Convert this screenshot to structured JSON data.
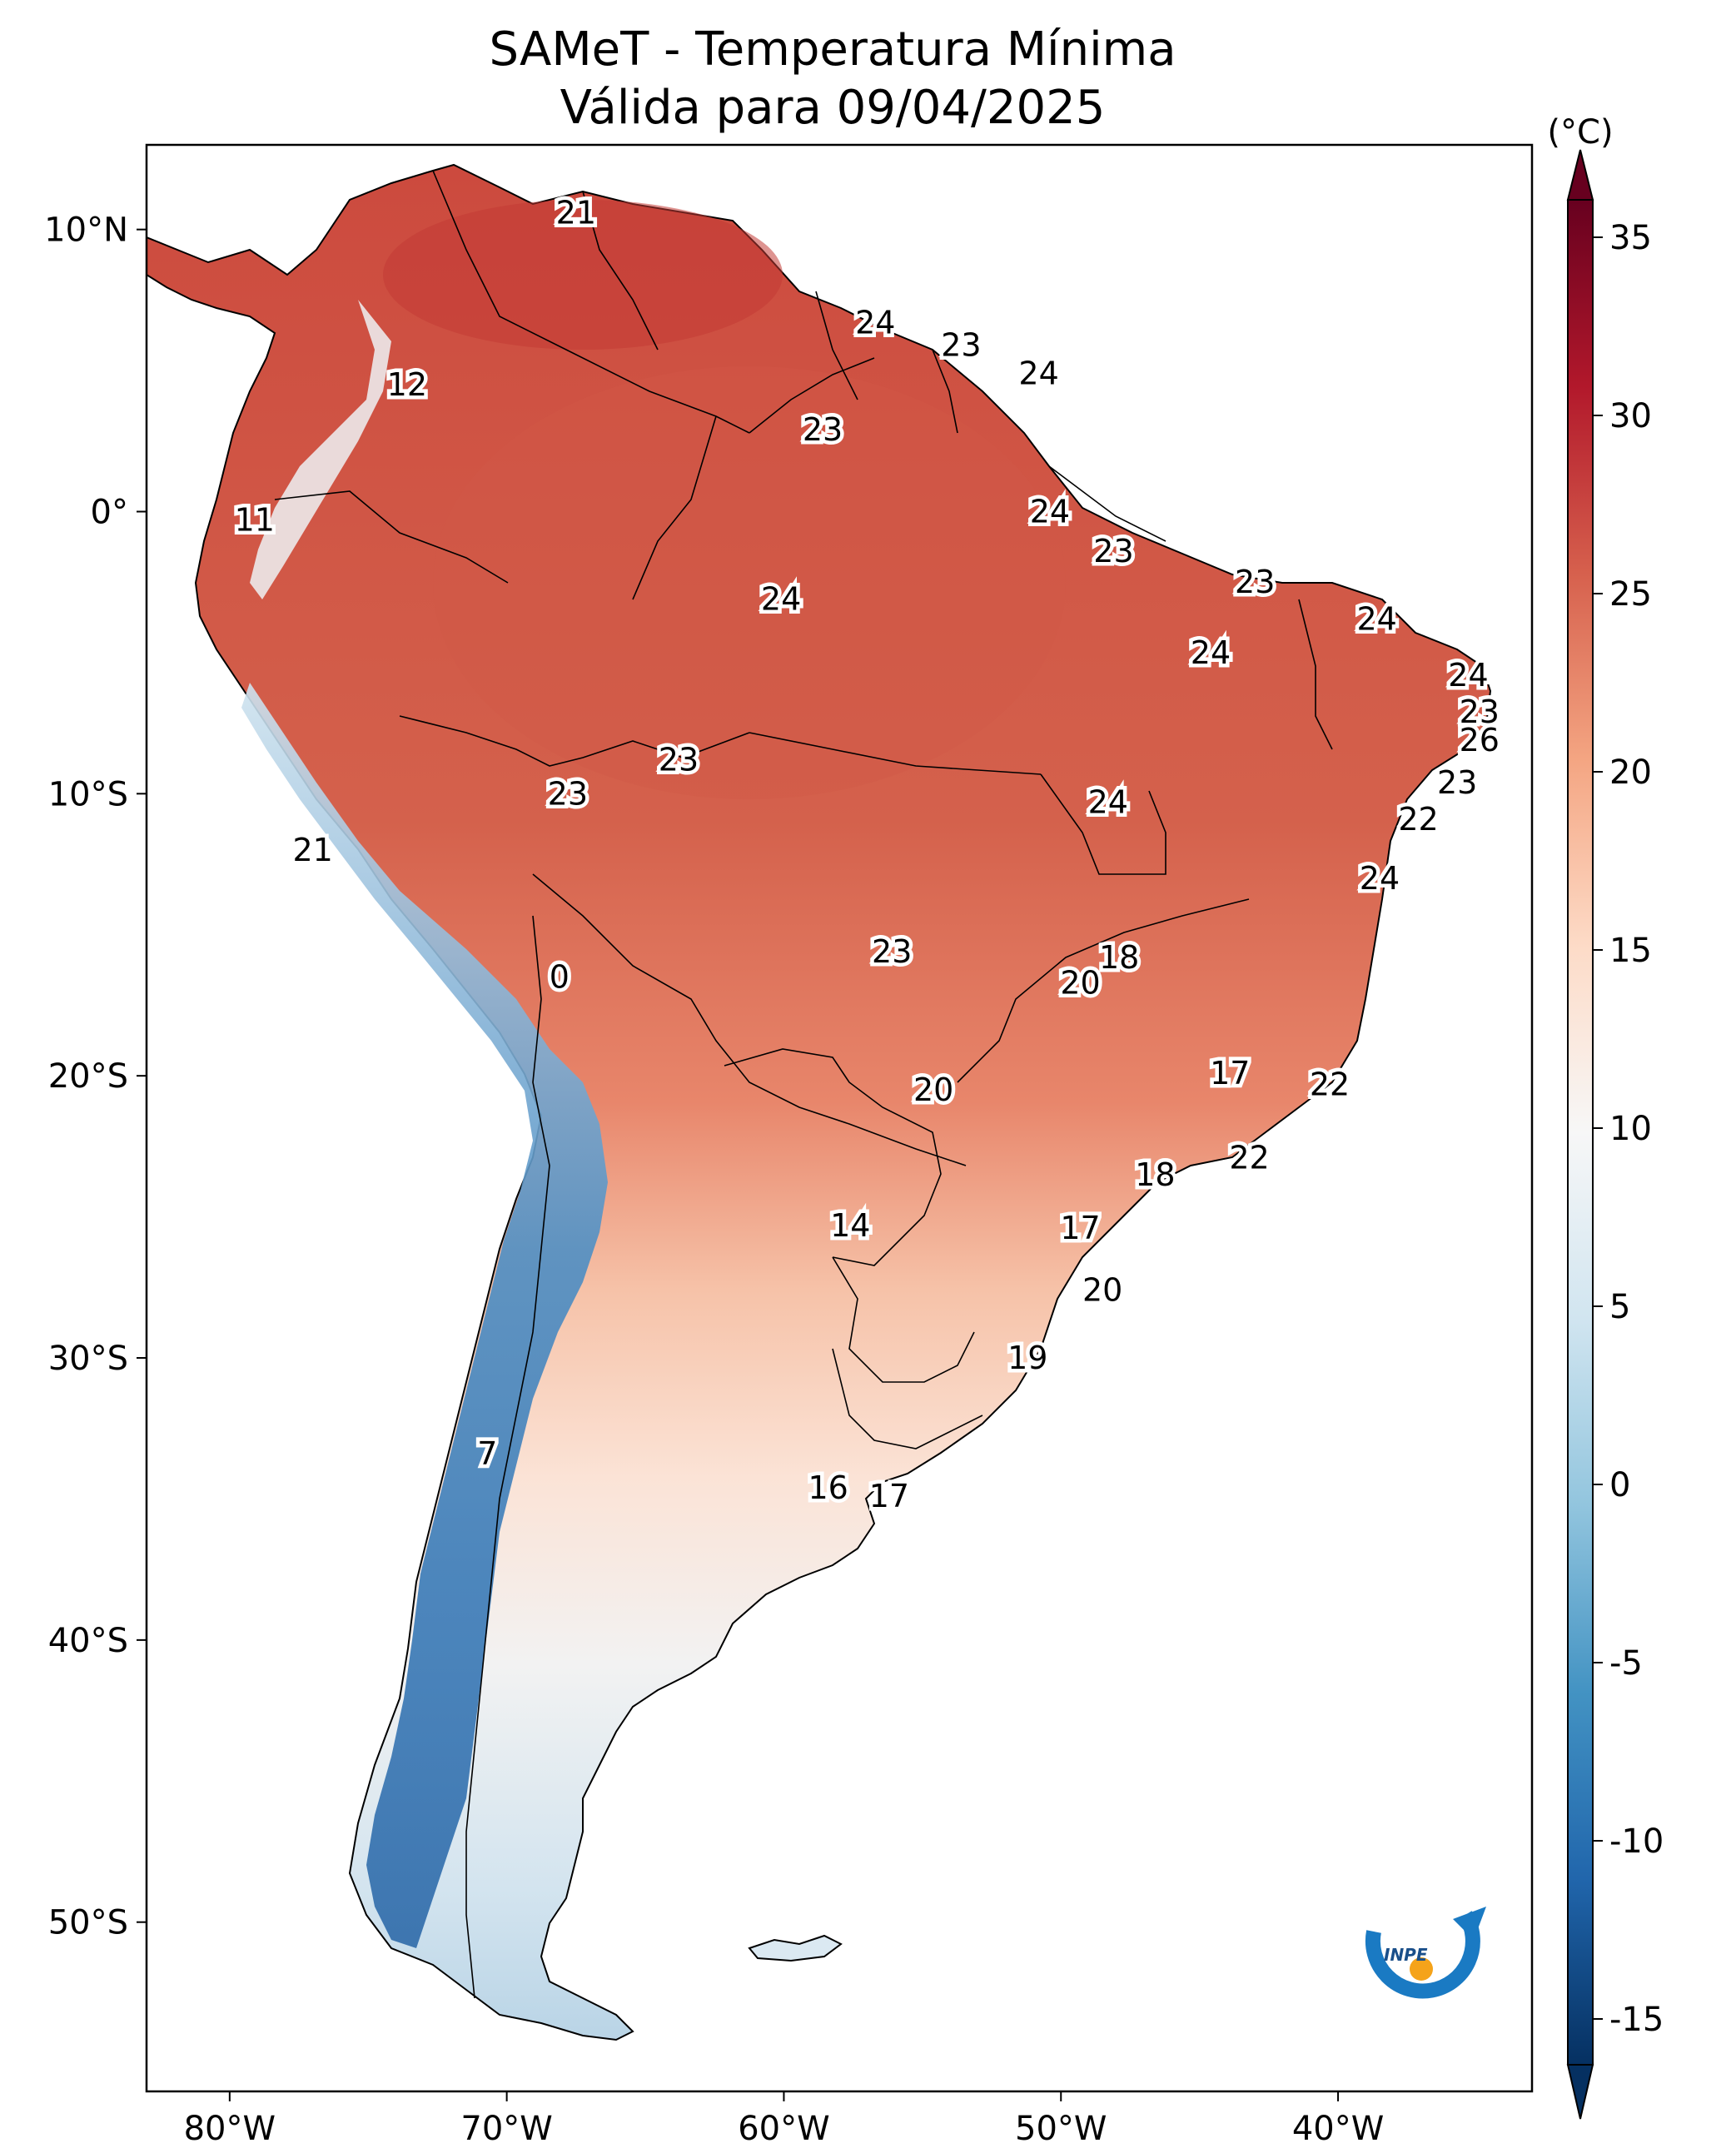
{
  "title": {
    "line1": "SAMeT - Temperatura Mínima",
    "line2": "Válida para 09/04/2025"
  },
  "colorbar": {
    "unit": "(°C)",
    "ticks": [
      "35",
      "30",
      "25",
      "20",
      "15",
      "10",
      "5",
      "0",
      "-5",
      "-10",
      "-15"
    ],
    "colors": {
      "max": "#67001f",
      "hot": "#c9393a",
      "warm": "#e8775f",
      "mild": "#f7c4a7",
      "neutral": "#f7f7f7",
      "cool": "#bcdbea",
      "cold": "#5a9fcc",
      "min": "#053061"
    }
  },
  "axes": {
    "lon_labels": [
      "80°W",
      "70°W",
      "60°W",
      "50°W",
      "40°W"
    ],
    "lat_labels": [
      "10°N",
      "0°",
      "10°S",
      "20°S",
      "30°S",
      "40°S",
      "50°S"
    ]
  },
  "logo": {
    "text": "INPE"
  },
  "chart_data": {
    "type": "map",
    "variable": "Temperatura Mínima (°C)",
    "valid_date": "09/04/2025",
    "lon_range": [
      -83,
      -33
    ],
    "lat_range": [
      -56,
      13
    ],
    "colorbar_range": [
      -15,
      35
    ],
    "station_values": [
      {
        "lon": -67.5,
        "lat": 10.6,
        "value": "21"
      },
      {
        "lon": -56.7,
        "lat": 6.7,
        "value": "24"
      },
      {
        "lon": -53.6,
        "lat": 5.9,
        "value": "23"
      },
      {
        "lon": -50.8,
        "lat": 4.9,
        "value": "24"
      },
      {
        "lon": -73.6,
        "lat": 4.5,
        "value": "12"
      },
      {
        "lon": -58.6,
        "lat": 2.9,
        "value": "23"
      },
      {
        "lon": -50.4,
        "lat": 0.0,
        "value": "24"
      },
      {
        "lon": -79.1,
        "lat": -0.3,
        "value": "11"
      },
      {
        "lon": -48.1,
        "lat": -1.4,
        "value": "23"
      },
      {
        "lon": -43.0,
        "lat": -2.5,
        "value": "23"
      },
      {
        "lon": -38.6,
        "lat": -3.8,
        "value": "24"
      },
      {
        "lon": -60.1,
        "lat": -3.1,
        "value": "24"
      },
      {
        "lon": -44.6,
        "lat": -5.0,
        "value": "24"
      },
      {
        "lon": -35.3,
        "lat": -5.8,
        "value": "24"
      },
      {
        "lon": -34.9,
        "lat": -7.1,
        "value": "23"
      },
      {
        "lon": -34.9,
        "lat": -8.1,
        "value": "26"
      },
      {
        "lon": -63.8,
        "lat": -8.8,
        "value": "23"
      },
      {
        "lon": -35.7,
        "lat": -9.6,
        "value": "23"
      },
      {
        "lon": -67.8,
        "lat": -10.0,
        "value": "23"
      },
      {
        "lon": -48.3,
        "lat": -10.3,
        "value": "24"
      },
      {
        "lon": -37.1,
        "lat": -10.9,
        "value": "22"
      },
      {
        "lon": -77.0,
        "lat": -12.0,
        "value": "21"
      },
      {
        "lon": -38.5,
        "lat": -13.0,
        "value": "24"
      },
      {
        "lon": -56.1,
        "lat": -15.6,
        "value": "23"
      },
      {
        "lon": -47.9,
        "lat": -15.8,
        "value": "18"
      },
      {
        "lon": -49.3,
        "lat": -16.7,
        "value": "20"
      },
      {
        "lon": -68.1,
        "lat": -16.5,
        "value": "0"
      },
      {
        "lon": -43.9,
        "lat": -19.9,
        "value": "17"
      },
      {
        "lon": -40.3,
        "lat": -20.3,
        "value": "22"
      },
      {
        "lon": -54.6,
        "lat": -20.5,
        "value": "20"
      },
      {
        "lon": -43.2,
        "lat": -22.9,
        "value": "22"
      },
      {
        "lon": -46.6,
        "lat": -23.5,
        "value": "18"
      },
      {
        "lon": -57.6,
        "lat": -25.3,
        "value": "14"
      },
      {
        "lon": -49.3,
        "lat": -25.4,
        "value": "17"
      },
      {
        "lon": -48.5,
        "lat": -27.6,
        "value": "20"
      },
      {
        "lon": -51.2,
        "lat": -30.0,
        "value": "19"
      },
      {
        "lon": -70.7,
        "lat": -33.4,
        "value": "7"
      },
      {
        "lon": -58.4,
        "lat": -34.6,
        "value": "16"
      },
      {
        "lon": -56.2,
        "lat": -34.9,
        "value": "17"
      }
    ]
  }
}
